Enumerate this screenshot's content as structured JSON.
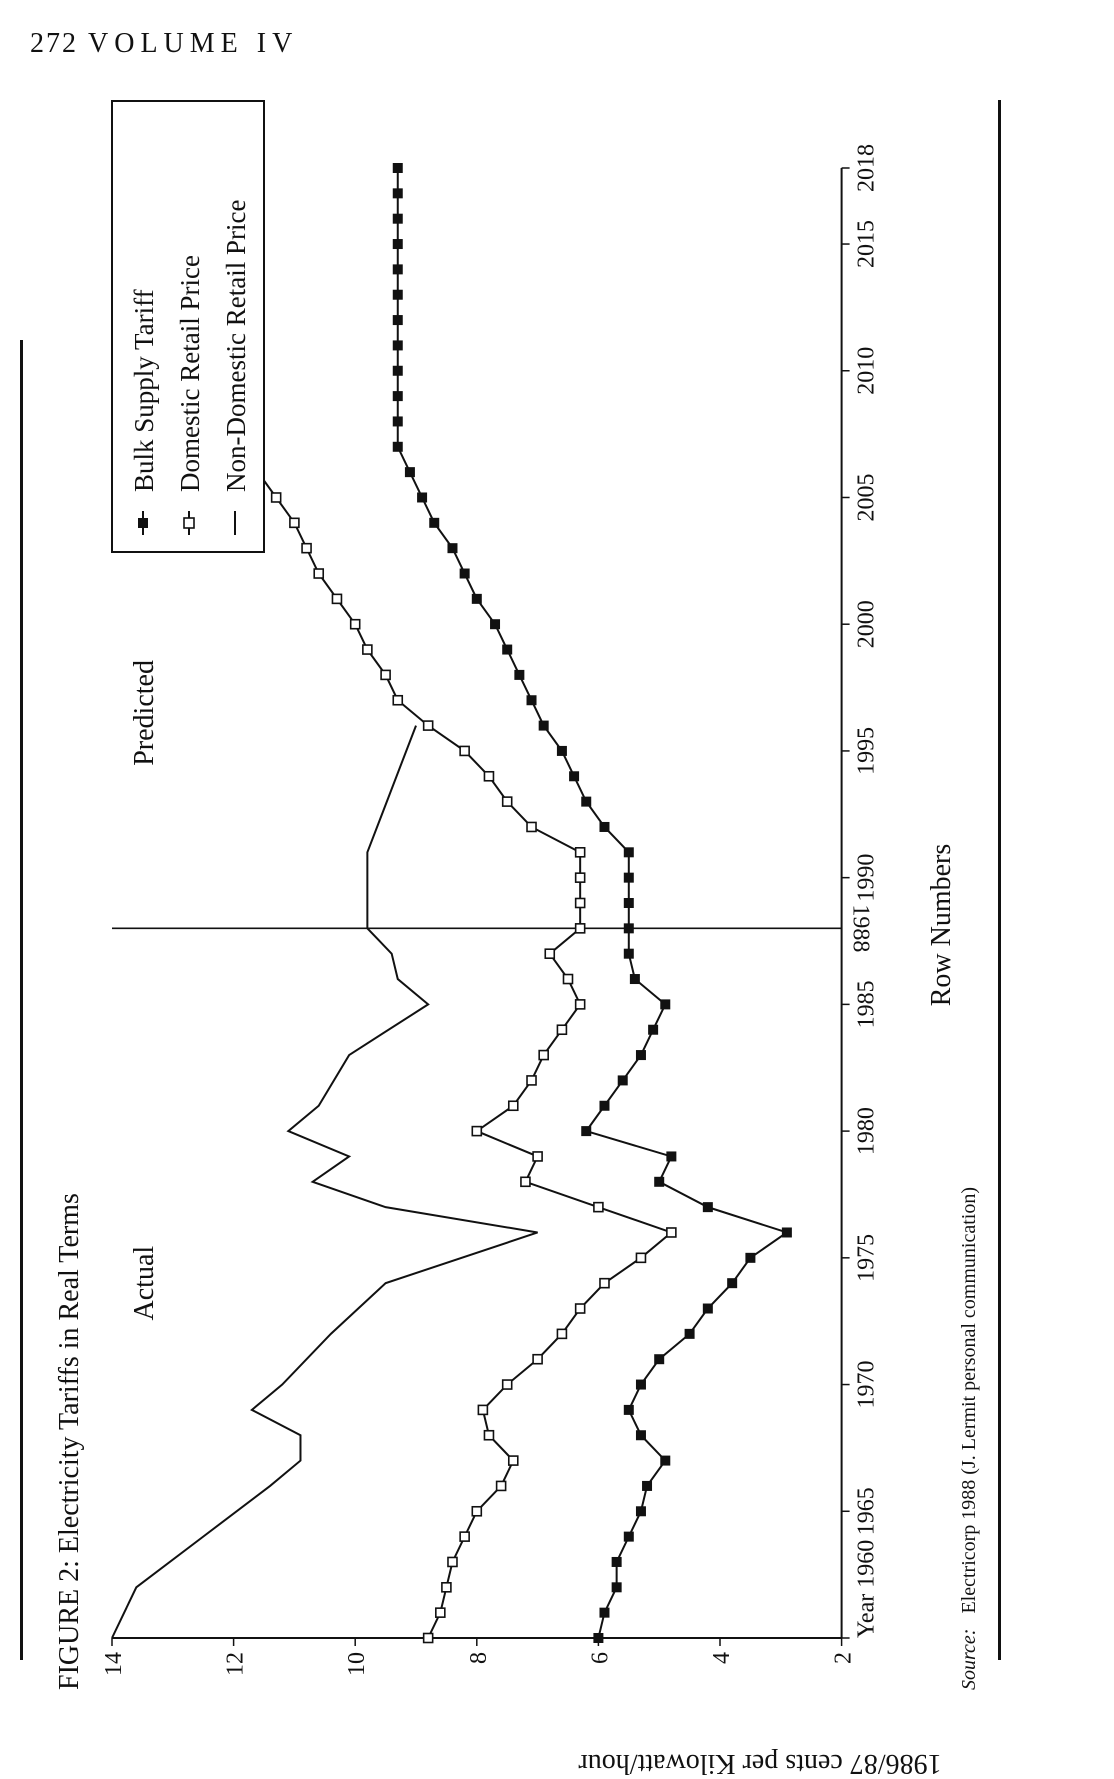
{
  "header": {
    "page_number": "272",
    "volume": "VOLUME IV"
  },
  "figure": {
    "title": "FIGURE 2: Electricity Tariffs in Real Terms",
    "source_label": "Source:",
    "source_text": "Electricorp 1988 (J. Lermit personal communication)"
  },
  "chart_data": {
    "type": "line",
    "title": "FIGURE 2: Electricity Tariffs in Real Terms",
    "xlabel": "Row Numbers",
    "ylabel": "1986/87 cents per Kilowatt/hour",
    "x_first_tick_label": "Year 1960",
    "xlim": [
      1960,
      2018
    ],
    "ylim": [
      2,
      14
    ],
    "x_ticks": [
      1960,
      1965,
      1970,
      1975,
      1980,
      1985,
      1990,
      1995,
      2000,
      2005,
      2010,
      2015,
      2018
    ],
    "y_ticks": [
      2,
      4,
      6,
      8,
      10,
      12,
      14
    ],
    "divider": {
      "x": 1988,
      "label": "1988"
    },
    "region_labels": {
      "left": "Actual",
      "right": "Predicted"
    },
    "legend_position": "top-right",
    "series": [
      {
        "name": "Bulk Supply Tariff",
        "marker": "filled-square",
        "x": [
          1960,
          1961,
          1962,
          1963,
          1964,
          1965,
          1966,
          1967,
          1968,
          1969,
          1970,
          1971,
          1972,
          1973,
          1974,
          1975,
          1976,
          1977,
          1978,
          1979,
          1980,
          1981,
          1982,
          1983,
          1984,
          1985,
          1986,
          1987,
          1988,
          1989,
          1990,
          1991,
          1992,
          1993,
          1994,
          1995,
          1996,
          1997,
          1998,
          1999,
          2000,
          2001,
          2002,
          2003,
          2004,
          2005,
          2006,
          2007,
          2008,
          2009,
          2010,
          2011,
          2012,
          2013,
          2014,
          2015,
          2016,
          2017,
          2018
        ],
        "values": [
          6.0,
          5.9,
          5.7,
          5.7,
          5.5,
          5.3,
          5.2,
          4.9,
          5.3,
          5.5,
          5.3,
          5.0,
          4.5,
          4.2,
          3.8,
          3.5,
          2.9,
          4.2,
          5.0,
          4.8,
          6.2,
          5.9,
          5.6,
          5.3,
          5.1,
          4.9,
          5.4,
          5.5,
          5.5,
          5.5,
          5.5,
          5.5,
          5.9,
          6.2,
          6.4,
          6.6,
          6.9,
          7.1,
          7.3,
          7.5,
          7.7,
          8.0,
          8.2,
          8.4,
          8.7,
          8.9,
          9.1,
          9.3,
          9.3,
          9.3,
          9.3,
          9.3,
          9.3,
          9.3,
          9.3,
          9.3,
          9.3,
          9.3,
          9.3
        ]
      },
      {
        "name": "Domestic Retail Price",
        "marker": "open-square",
        "x": [
          1960,
          1961,
          1962,
          1963,
          1964,
          1965,
          1966,
          1967,
          1968,
          1969,
          1970,
          1971,
          1972,
          1973,
          1974,
          1975,
          1976,
          1977,
          1978,
          1979,
          1980,
          1981,
          1982,
          1983,
          1984,
          1985,
          1986,
          1987,
          1988,
          1989,
          1990,
          1991,
          1992,
          1993,
          1994,
          1995,
          1996,
          1997,
          1998,
          1999,
          2000,
          2001,
          2002,
          2003,
          2004,
          2005,
          2006,
          2007,
          2008,
          2009,
          2010,
          2011,
          2012,
          2013,
          2014,
          2015,
          2016,
          2017,
          2018
        ],
        "values": [
          8.8,
          8.6,
          8.5,
          8.4,
          8.2,
          8.0,
          7.6,
          7.4,
          7.8,
          7.9,
          7.5,
          7.0,
          6.6,
          6.3,
          5.9,
          5.3,
          4.8,
          6.0,
          7.2,
          7.0,
          8.0,
          7.4,
          7.1,
          6.9,
          6.6,
          6.3,
          6.5,
          6.8,
          6.3,
          6.3,
          6.3,
          6.3,
          7.1,
          7.5,
          7.8,
          8.2,
          8.8,
          9.3,
          9.5,
          9.8,
          10.0,
          10.3,
          10.6,
          10.8,
          11.0,
          11.3,
          11.6,
          11.9,
          11.9,
          11.9,
          11.9,
          11.9,
          11.9,
          11.9,
          11.9,
          11.9,
          11.9,
          11.9,
          11.9
        ]
      },
      {
        "name": "Non-Domestic Retail Price",
        "marker": "none",
        "x": [
          1960,
          1961,
          1962,
          1964,
          1966,
          1967,
          1968,
          1969,
          1970,
          1972,
          1974,
          1976,
          1977,
          1978,
          1979,
          1980,
          1981,
          1983,
          1985,
          1986,
          1987,
          1988,
          1991,
          1996
        ],
        "values": [
          14.0,
          13.8,
          13.6,
          12.5,
          11.4,
          10.9,
          10.9,
          11.7,
          11.2,
          10.4,
          9.5,
          7.0,
          9.5,
          10.7,
          10.1,
          11.1,
          10.6,
          10.1,
          8.8,
          9.3,
          9.4,
          9.8,
          9.8,
          9.0
        ]
      }
    ]
  }
}
